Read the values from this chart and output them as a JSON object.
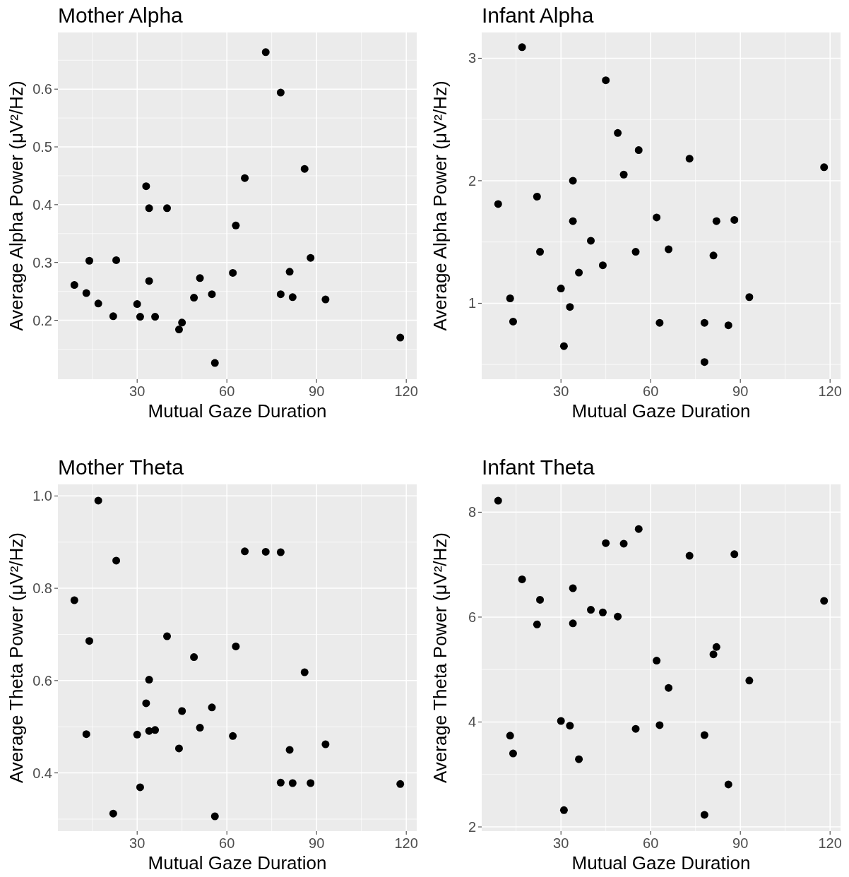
{
  "chart_data": [
    {
      "type": "scatter",
      "title": "Mother Alpha",
      "xlabel": "Mutual Gaze Duration",
      "ylabel": "Average Alpha Power (μV²/Hz)",
      "xlim": [
        3.5,
        123.5
      ],
      "xticks": [
        30,
        60,
        90,
        120
      ],
      "ylim": [
        0.098,
        0.698
      ],
      "yticks": [
        0.2,
        0.3,
        0.4,
        0.5,
        0.6
      ],
      "grid": true,
      "marker": "circle",
      "series": [
        {
          "color": "#000000",
          "x": [
            9,
            13,
            14,
            17,
            22,
            23,
            30,
            31,
            33,
            34,
            34,
            36,
            40,
            44,
            45,
            49,
            51,
            55,
            56,
            62,
            63,
            66,
            73,
            78,
            78,
            81,
            82,
            86,
            88,
            93,
            118
          ],
          "values": [
            0.261,
            0.247,
            0.303,
            0.229,
            0.207,
            0.304,
            0.228,
            0.206,
            0.432,
            0.394,
            0.268,
            0.206,
            0.394,
            0.184,
            0.196,
            0.239,
            0.273,
            0.245,
            0.126,
            0.282,
            0.364,
            0.446,
            0.664,
            0.594,
            0.245,
            0.284,
            0.24,
            0.462,
            0.308,
            0.236,
            0.17
          ]
        }
      ]
    },
    {
      "type": "scatter",
      "title": "Infant Alpha",
      "xlabel": "Mutual Gaze Duration",
      "ylabel": "Average Alpha Power (μV²/Hz)",
      "xlim": [
        3.5,
        123.5
      ],
      "xticks": [
        30,
        60,
        90,
        120
      ],
      "ylim": [
        0.38,
        3.21
      ],
      "yticks": [
        1,
        2,
        3
      ],
      "grid": true,
      "marker": "circle",
      "series": [
        {
          "color": "#000000",
          "x": [
            9,
            13,
            14,
            17,
            22,
            23,
            30,
            31,
            33,
            34,
            34,
            36,
            40,
            44,
            45,
            49,
            51,
            55,
            56,
            62,
            63,
            66,
            73,
            78,
            78,
            81,
            82,
            86,
            88,
            93,
            118
          ],
          "values": [
            1.81,
            1.04,
            0.85,
            3.09,
            1.87,
            1.42,
            1.12,
            0.65,
            0.97,
            2.0,
            1.67,
            1.25,
            1.51,
            1.31,
            2.82,
            2.39,
            2.05,
            1.42,
            2.25,
            1.7,
            0.84,
            1.44,
            2.18,
            0.84,
            0.52,
            1.39,
            1.67,
            0.82,
            1.68,
            1.05,
            2.11
          ]
        }
      ]
    },
    {
      "type": "scatter",
      "title": "Mother Theta",
      "xlabel": "Mutual Gaze Duration",
      "ylabel": "Average Theta Power (μV²/Hz)",
      "xlim": [
        3.5,
        123.5
      ],
      "xticks": [
        30,
        60,
        90,
        120
      ],
      "ylim": [
        0.274,
        1.025
      ],
      "yticks": [
        0.4,
        0.6,
        0.8,
        {
          "value": 1,
          "label": "1.0"
        }
      ],
      "grid": true,
      "marker": "circle",
      "series": [
        {
          "color": "#000000",
          "x": [
            9,
            13,
            14,
            17,
            22,
            23,
            30,
            31,
            33,
            34,
            34,
            36,
            40,
            44,
            45,
            49,
            51,
            55,
            56,
            62,
            63,
            66,
            73,
            78,
            78,
            81,
            82,
            86,
            88,
            93,
            118
          ],
          "values": [
            0.774,
            0.484,
            0.686,
            0.99,
            0.312,
            0.86,
            0.483,
            0.369,
            0.551,
            0.602,
            0.491,
            0.493,
            0.696,
            0.453,
            0.534,
            0.651,
            0.498,
            0.542,
            0.306,
            0.48,
            0.674,
            0.88,
            0.879,
            0.878,
            0.379,
            0.45,
            0.378,
            0.618,
            0.378,
            0.462,
            0.376
          ]
        }
      ]
    },
    {
      "type": "scatter",
      "title": "Infant Theta",
      "xlabel": "Mutual Gaze Duration",
      "ylabel": "Average Theta Power (μV²/Hz)",
      "xlim": [
        3.5,
        123.5
      ],
      "xticks": [
        30,
        60,
        90,
        120
      ],
      "ylim": [
        1.92,
        8.53
      ],
      "yticks": [
        2,
        4,
        6,
        8
      ],
      "grid": true,
      "marker": "circle",
      "series": [
        {
          "color": "#000000",
          "x": [
            9,
            13,
            14,
            17,
            22,
            23,
            30,
            31,
            33,
            34,
            34,
            36,
            40,
            44,
            45,
            49,
            51,
            55,
            56,
            62,
            63,
            66,
            73,
            78,
            78,
            81,
            82,
            86,
            88,
            93,
            118
          ],
          "values": [
            8.22,
            3.74,
            3.4,
            6.72,
            5.86,
            6.33,
            4.02,
            2.32,
            3.93,
            6.55,
            5.88,
            3.29,
            6.14,
            6.09,
            7.41,
            6.01,
            7.4,
            3.87,
            7.68,
            5.17,
            3.94,
            4.65,
            7.17,
            3.75,
            2.23,
            5.29,
            5.43,
            2.81,
            7.2,
            4.79,
            6.31
          ]
        }
      ]
    }
  ]
}
